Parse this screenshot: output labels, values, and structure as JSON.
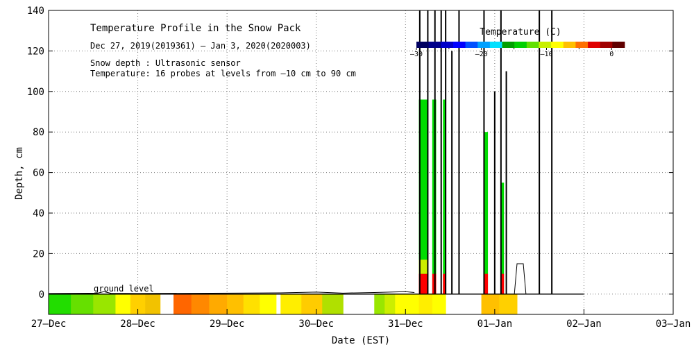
{
  "chart_data": {
    "type": "heatmap",
    "title": "Temperature Profile in the Snow Pack",
    "subtitle": "Dec 27, 2019(2019361) – Jan  3, 2020(2020003)",
    "notes": [
      "Snow depth : Ultrasonic sensor",
      "Temperature: 16 probes at levels from –10 cm to 90 cm"
    ],
    "xlabel": "Date (EST)",
    "ylabel": "Depth, cm",
    "x_ticks": [
      "27–Dec",
      "28–Dec",
      "29–Dec",
      "30–Dec",
      "31–Dec",
      "01–Jan",
      "02–Jan",
      "03–Jan"
    ],
    "xlim": [
      0,
      7
    ],
    "ylim": [
      -10,
      140
    ],
    "y_ticks": [
      0,
      20,
      40,
      60,
      80,
      100,
      120,
      140
    ],
    "grid": true,
    "annotation": "ground level",
    "colorbar": {
      "title": "Temperature (C)",
      "tick_labels": [
        "–30",
        "–20",
        "–10",
        "0"
      ],
      "tick_values": [
        -30,
        -20,
        -10,
        0
      ],
      "range": [
        -30,
        2
      ],
      "colors": [
        "#000060",
        "#00008a",
        "#0000c8",
        "#0000ff",
        "#0050ff",
        "#00a0ff",
        "#00e0ff",
        "#00a000",
        "#00d000",
        "#60e000",
        "#c8f000",
        "#ffff00",
        "#ffc000",
        "#ff7000",
        "#e00000",
        "#a00000",
        "#600000"
      ]
    },
    "snow_depth_note": "Ultrasonic sensor trace near 0 cm with spikes to off-scale values from 31-Dec to 02-Jan",
    "temperature_blocks": [
      {
        "x0": 0.0,
        "x1": 0.75,
        "y0": -10,
        "y1": 0,
        "colors": [
          "#22dd00",
          "#66e000",
          "#99e600"
        ]
      },
      {
        "x0": 0.75,
        "x1": 1.25,
        "y0": -10,
        "y1": 0,
        "colors": [
          "#ffff00",
          "#ffd000",
          "#f2c200"
        ]
      },
      {
        "x0": 1.4,
        "x1": 2.0,
        "y0": -10,
        "y1": 0,
        "colors": [
          "#ff6600",
          "#ff8800",
          "#ffaa00"
        ]
      },
      {
        "x0": 2.0,
        "x1": 2.55,
        "y0": -10,
        "y1": 0,
        "colors": [
          "#ffc000",
          "#ffe000",
          "#ffff00"
        ]
      },
      {
        "x0": 2.6,
        "x1": 3.3,
        "y0": -10,
        "y1": 0,
        "colors": [
          "#ffee00",
          "#ffcc00",
          "#b0e000"
        ]
      },
      {
        "x0": 3.65,
        "x1": 4.0,
        "y0": -10,
        "y1": 0,
        "colors": [
          "#99e600",
          "#ccee00",
          "#ffff00"
        ]
      },
      {
        "x0": 4.0,
        "x1": 4.45,
        "y0": -10,
        "y1": 0,
        "colors": [
          "#ffff00",
          "#ffee00",
          "#ffff00"
        ]
      },
      {
        "x0": 4.15,
        "x1": 4.25,
        "y0": 0,
        "y1": 96,
        "colors": [
          "#00dd00"
        ]
      },
      {
        "x0": 4.15,
        "x1": 4.25,
        "y0": 0,
        "y1": 10,
        "colors": [
          "#ff0000"
        ]
      },
      {
        "x0": 4.15,
        "x1": 4.25,
        "y0": 10,
        "y1": 17,
        "colors": [
          "#ccee00"
        ]
      },
      {
        "x0": 4.3,
        "x1": 4.34,
        "y0": 0,
        "y1": 96,
        "colors": [
          "#00dd00"
        ]
      },
      {
        "x0": 4.3,
        "x1": 4.34,
        "y0": 0,
        "y1": 10,
        "colors": [
          "#ff0000"
        ]
      },
      {
        "x0": 4.42,
        "x1": 4.45,
        "y0": 0,
        "y1": 96,
        "colors": [
          "#00dd00"
        ]
      },
      {
        "x0": 4.42,
        "x1": 4.45,
        "y0": 0,
        "y1": 10,
        "colors": [
          "#ff0000"
        ]
      },
      {
        "x0": 4.85,
        "x1": 5.25,
        "y0": -10,
        "y1": 0,
        "colors": [
          "#ffc000",
          "#ffd000"
        ]
      },
      {
        "x0": 4.88,
        "x1": 4.92,
        "y0": 0,
        "y1": 80,
        "colors": [
          "#00dd00"
        ]
      },
      {
        "x0": 4.88,
        "x1": 4.92,
        "y0": 0,
        "y1": 10,
        "colors": [
          "#ff0000"
        ]
      },
      {
        "x0": 5.07,
        "x1": 5.1,
        "y0": 0,
        "y1": 55,
        "colors": [
          "#00dd00"
        ]
      },
      {
        "x0": 5.07,
        "x1": 5.1,
        "y0": 0,
        "y1": 10,
        "colors": [
          "#ff0000"
        ]
      }
    ]
  }
}
